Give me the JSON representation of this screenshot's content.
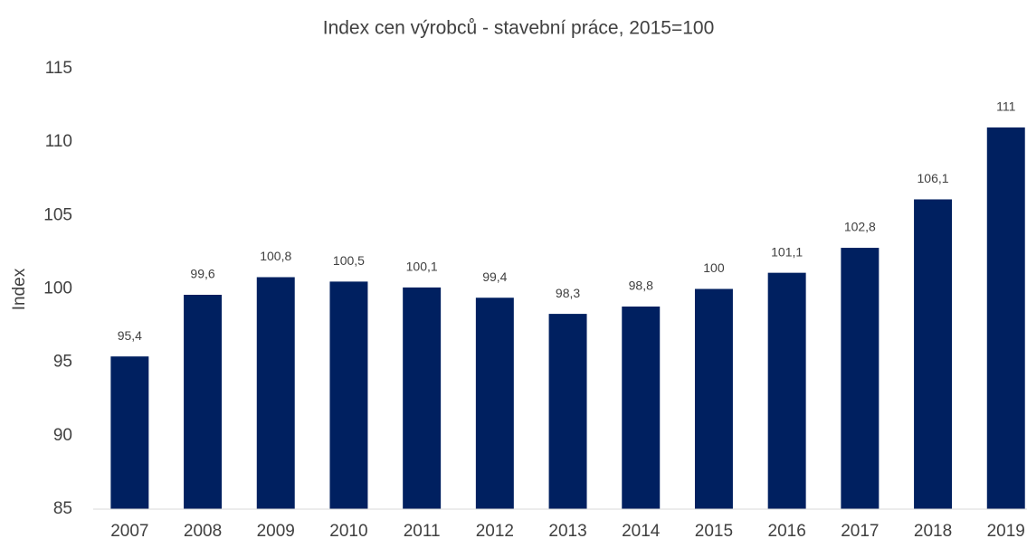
{
  "chart_data": {
    "type": "bar",
    "title": "Index cen výrobců - stavební práce, 2015=100",
    "y_label": "Index",
    "categories": [
      "2007",
      "2008",
      "2009",
      "2010",
      "2011",
      "2012",
      "2013",
      "2014",
      "2015",
      "2016",
      "2017",
      "2018",
      "2019"
    ],
    "values": [
      95.4,
      99.6,
      100.8,
      100.5,
      100.1,
      99.4,
      98.3,
      98.8,
      100,
      101.1,
      102.8,
      106.1,
      111
    ],
    "value_labels": [
      "95,4",
      "99,6",
      "100,8",
      "100,5",
      "100,1",
      "99,4",
      "98,3",
      "98,8",
      "100",
      "101,1",
      "102,8",
      "106,1",
      "111"
    ],
    "color": "#002060",
    "ylim": [
      85,
      115
    ],
    "yticks": [
      85,
      90,
      95,
      100,
      105,
      110,
      115
    ],
    "grid": false
  }
}
